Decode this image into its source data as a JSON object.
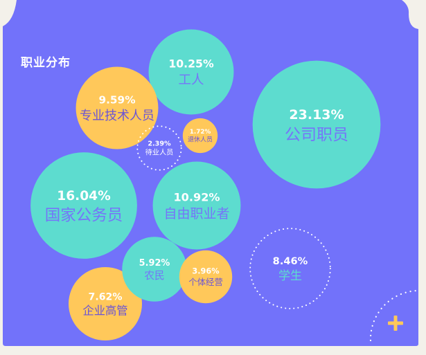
{
  "chart_data": {
    "type": "bubble",
    "title": "职业分布",
    "unit": "%",
    "bubbles": [
      {
        "label": "公司职员",
        "value": 23.13,
        "value_text": "23.13%",
        "style": "teal"
      },
      {
        "label": "国家公务员",
        "value": 16.04,
        "value_text": "16.04%",
        "style": "teal"
      },
      {
        "label": "自由职业者",
        "value": 10.92,
        "value_text": "10.92%",
        "style": "teal"
      },
      {
        "label": "工人",
        "value": 10.25,
        "value_text": "10.25%",
        "style": "teal"
      },
      {
        "label": "专业技术人员",
        "value": 9.59,
        "value_text": "9.59%",
        "style": "yellow"
      },
      {
        "label": "学生",
        "value": 8.46,
        "value_text": "8.46%",
        "style": "dotted"
      },
      {
        "label": "企业高管",
        "value": 7.62,
        "value_text": "7.62%",
        "style": "yellow"
      },
      {
        "label": "农民",
        "value": 5.92,
        "value_text": "5.92%",
        "style": "teal"
      },
      {
        "label": "个体经营",
        "value": 3.96,
        "value_text": "3.96%",
        "style": "yellow"
      },
      {
        "label": "待业人员",
        "value": 2.39,
        "value_text": "2.39%",
        "style": "dotted"
      },
      {
        "label": "退休人员",
        "value": 1.72,
        "value_text": "1.72%",
        "style": "yellow"
      }
    ]
  },
  "colors": {
    "page_background": "#f3f1ea",
    "panel": "#7272fa",
    "teal": "#5ddccf",
    "yellow": "#ffc85a",
    "label_on_teal": "#7575f8",
    "label_on_yellow": "#6b55d4",
    "white": "#ffffff"
  },
  "icons": {
    "corner_icon": "plus-icon"
  }
}
